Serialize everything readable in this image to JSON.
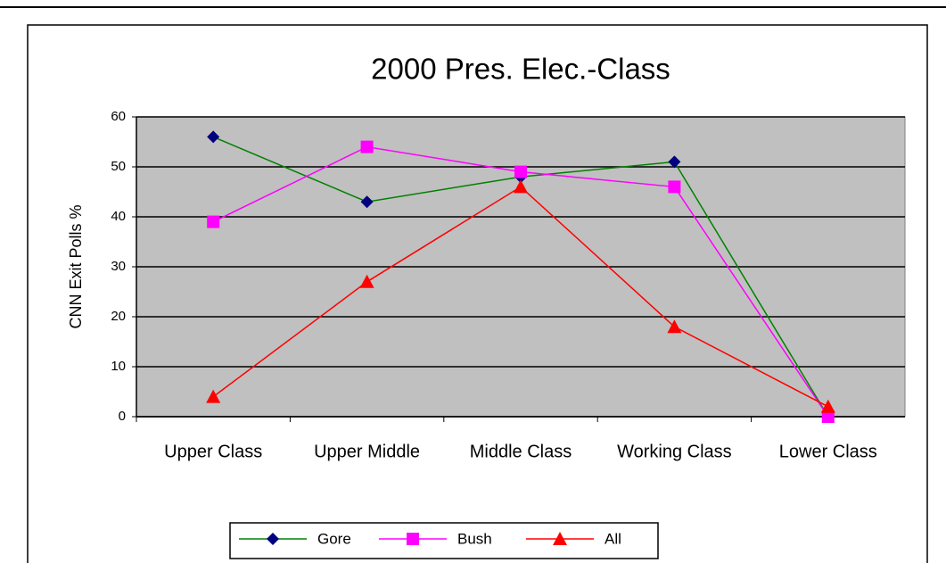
{
  "chart_data": {
    "type": "line",
    "title": "2000 Pres. Elec.-Class",
    "y_label": "CNN Exit Polls %",
    "categories": [
      "Upper Class",
      "Upper Middle",
      "Middle Class",
      "Working Class",
      "Lower Class"
    ],
    "series": [
      {
        "name": "Gore",
        "color": "#008000",
        "marker_color": "#000080",
        "marker": "diamond",
        "values": [
          56,
          43,
          48,
          51,
          0
        ]
      },
      {
        "name": "Bush",
        "color": "#ff00ff",
        "marker_color": "#ff00ff",
        "marker": "square",
        "values": [
          39,
          54,
          49,
          46,
          0
        ]
      },
      {
        "name": "All",
        "color": "#ff0000",
        "marker_color": "#ff0000",
        "marker": "triangle",
        "values": [
          4,
          27,
          46,
          18,
          2
        ]
      }
    ],
    "ylim": [
      0,
      60
    ],
    "yticks": [
      0,
      10,
      20,
      30,
      40,
      50,
      60
    ],
    "grid": true,
    "legend": "bottom"
  }
}
